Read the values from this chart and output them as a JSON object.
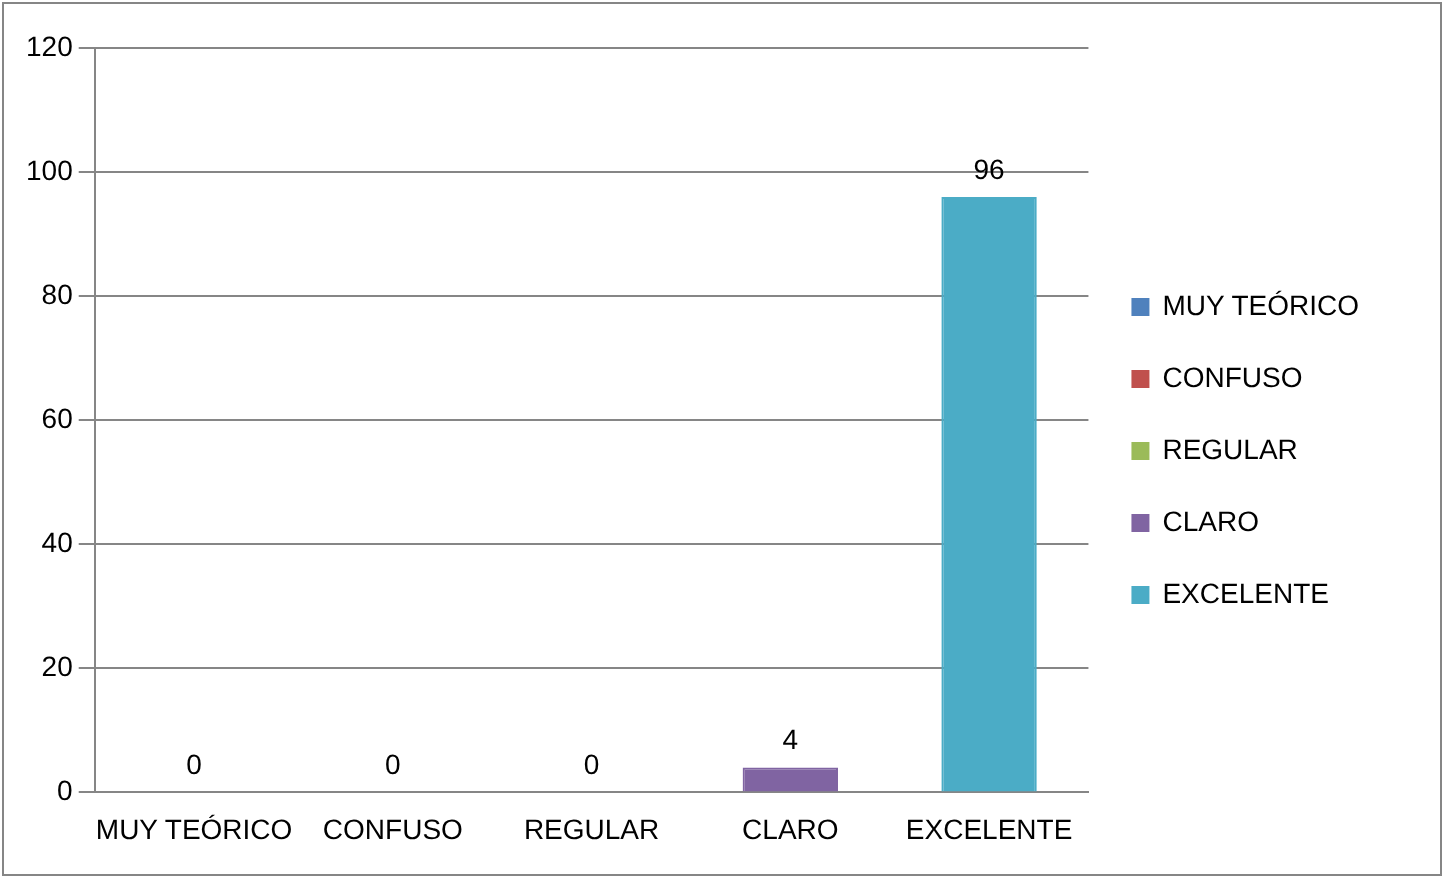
{
  "chart_data": {
    "type": "bar",
    "categories": [
      "MUY TEÓRICO",
      "CONFUSO",
      "REGULAR",
      "CLARO",
      "EXCELENTE"
    ],
    "series": [
      {
        "name": "MUY TEÓRICO",
        "color": "#4f81bd",
        "values": [
          0,
          null,
          null,
          null,
          null
        ]
      },
      {
        "name": "CONFUSO",
        "color": "#c0504d",
        "values": [
          null,
          0,
          null,
          null,
          null
        ]
      },
      {
        "name": "REGULAR",
        "color": "#9bbb59",
        "values": [
          null,
          null,
          0,
          null,
          null
        ]
      },
      {
        "name": "CLARO",
        "color": "#8064a2",
        "values": [
          null,
          null,
          null,
          4,
          null
        ]
      },
      {
        "name": "EXCELENTE",
        "color": "#4bacc6",
        "values": [
          null,
          null,
          null,
          null,
          96
        ]
      }
    ],
    "ylim": [
      0,
      120
    ],
    "yticks": [
      0,
      20,
      40,
      60,
      80,
      100,
      120
    ],
    "grid": "y",
    "legend": "right",
    "data_labels": true
  }
}
